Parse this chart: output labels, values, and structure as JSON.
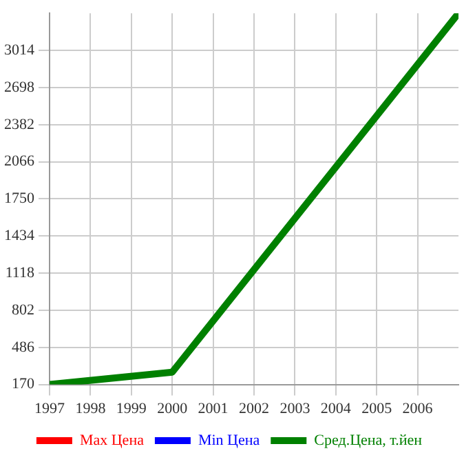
{
  "chart_data": {
    "type": "line",
    "x": [
      1997,
      2000,
      2007
    ],
    "series": [
      {
        "name": "Max Цена",
        "color": "#ff0000",
        "values": [
          null,
          null,
          null
        ]
      },
      {
        "name": "Min Цена",
        "color": "#0000ff",
        "values": [
          null,
          null,
          null
        ]
      },
      {
        "name": "Сред.Цена, т.йен",
        "color": "#008000",
        "values": [
          170,
          275,
          3330
        ]
      }
    ],
    "xlim": [
      1997,
      2007
    ],
    "xticks": [
      1997,
      1998,
      1999,
      2000,
      2001,
      2002,
      2003,
      2004,
      2005,
      2006
    ],
    "ylim": [
      170,
      3330
    ],
    "yticks": [
      170,
      486,
      802,
      1118,
      1434,
      1750,
      2066,
      2382,
      2698,
      3014
    ],
    "grid": true,
    "legend": "bottom",
    "marker": "none",
    "line_style": "solid"
  }
}
